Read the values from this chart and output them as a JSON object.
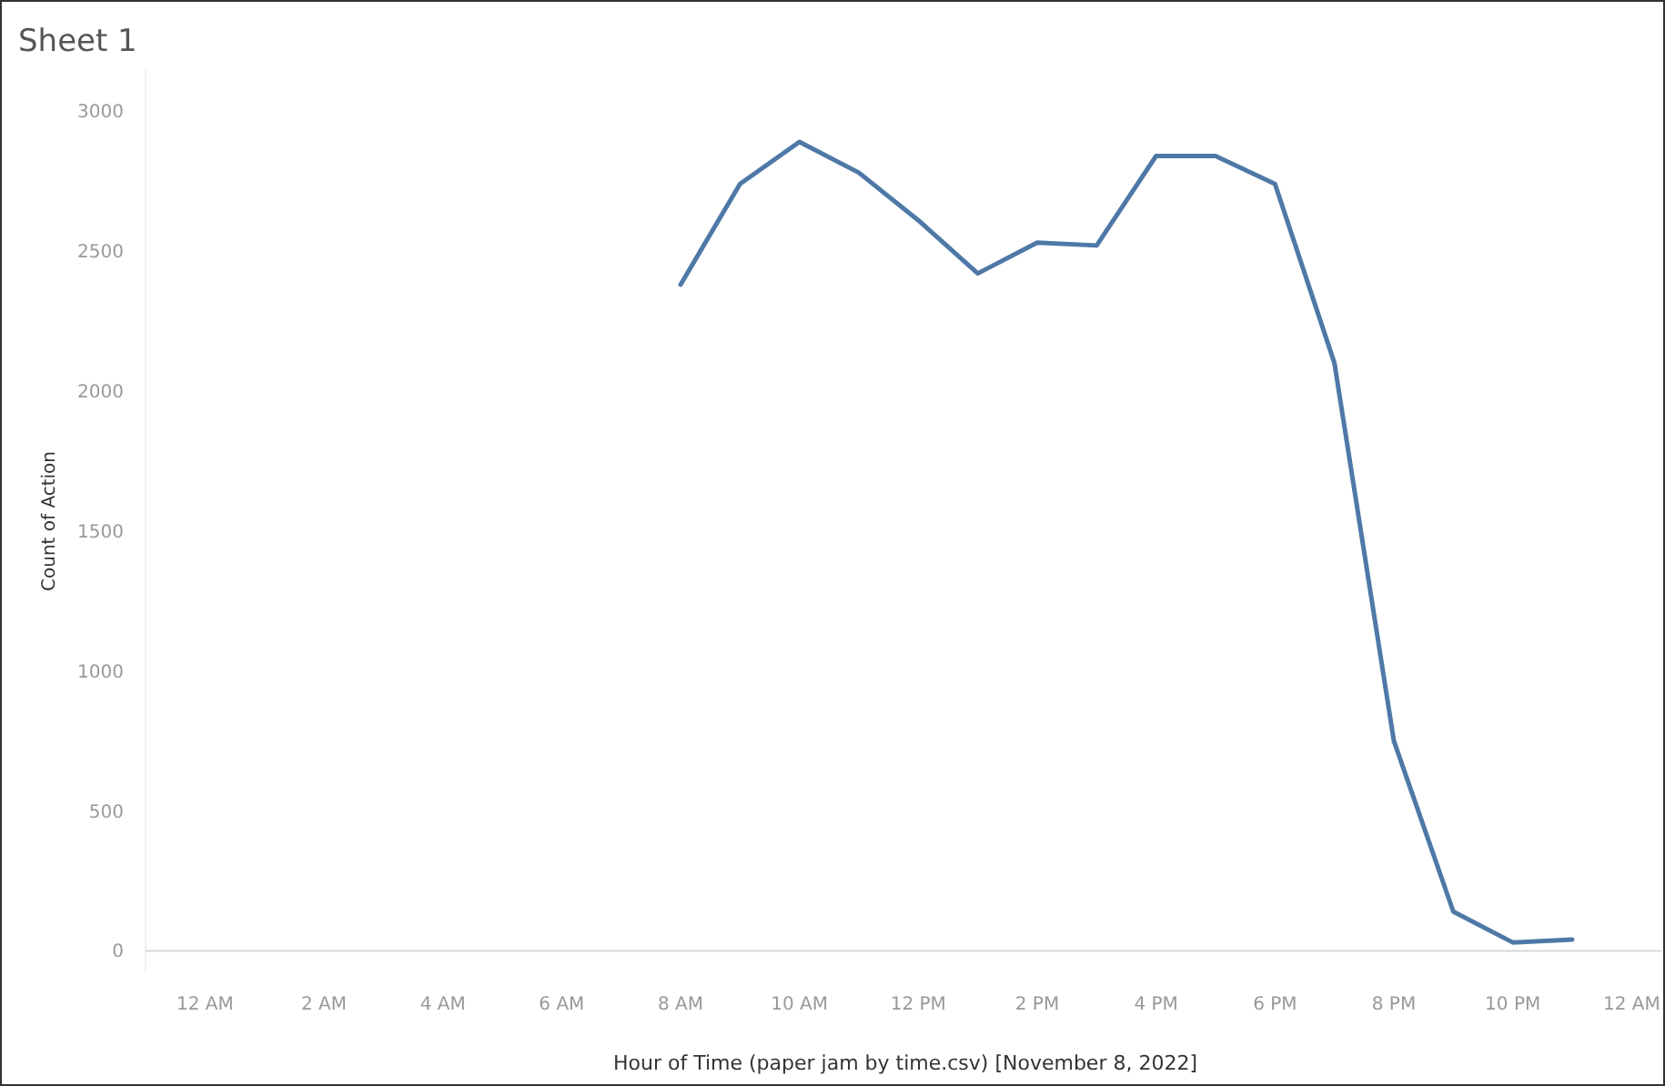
{
  "chart_data": {
    "type": "line",
    "title": "Sheet 1",
    "xlabel": "Hour of Time (paper jam by time.csv) [November 8, 2022]",
    "ylabel": "Count of Action",
    "x": [
      "2022-11-08T08:00",
      "2022-11-08T09:00",
      "2022-11-08T10:00",
      "2022-11-08T11:00",
      "2022-11-08T12:00",
      "2022-11-08T13:00",
      "2022-11-08T14:00",
      "2022-11-08T15:00",
      "2022-11-08T16:00",
      "2022-11-08T17:00",
      "2022-11-08T18:00",
      "2022-11-08T19:00",
      "2022-11-08T20:00",
      "2022-11-08T21:00",
      "2022-11-08T22:00",
      "2022-11-08T23:00"
    ],
    "series": [
      {
        "color": "#4e79a7",
        "values": [
          2380,
          2740,
          2890,
          2780,
          2610,
          2420,
          2530,
          2520,
          2840,
          2840,
          2740,
          2100,
          750,
          140,
          30,
          40
        ]
      }
    ],
    "xlim": [
      "2022-11-07T23:00",
      "2022-11-09T00:30"
    ],
    "xticks": [
      {
        "value": "2022-11-08T00:00",
        "label": "12 AM"
      },
      {
        "value": "2022-11-08T02:00",
        "label": "2 AM"
      },
      {
        "value": "2022-11-08T04:00",
        "label": "4 AM"
      },
      {
        "value": "2022-11-08T06:00",
        "label": "6 AM"
      },
      {
        "value": "2022-11-08T08:00",
        "label": "8 AM"
      },
      {
        "value": "2022-11-08T10:00",
        "label": "10 AM"
      },
      {
        "value": "2022-11-08T12:00",
        "label": "12 PM"
      },
      {
        "value": "2022-11-08T14:00",
        "label": "2 PM"
      },
      {
        "value": "2022-11-08T16:00",
        "label": "4 PM"
      },
      {
        "value": "2022-11-08T18:00",
        "label": "6 PM"
      },
      {
        "value": "2022-11-08T20:00",
        "label": "8 PM"
      },
      {
        "value": "2022-11-08T22:00",
        "label": "10 PM"
      },
      {
        "value": "2022-11-09T00:00",
        "label": "12 AM"
      }
    ],
    "ylim": [
      -80,
      3150
    ],
    "yticks": [
      0,
      500,
      1000,
      1500,
      2000,
      2500,
      3000
    ],
    "grid": false,
    "marker": "none",
    "line_style": "solid"
  }
}
